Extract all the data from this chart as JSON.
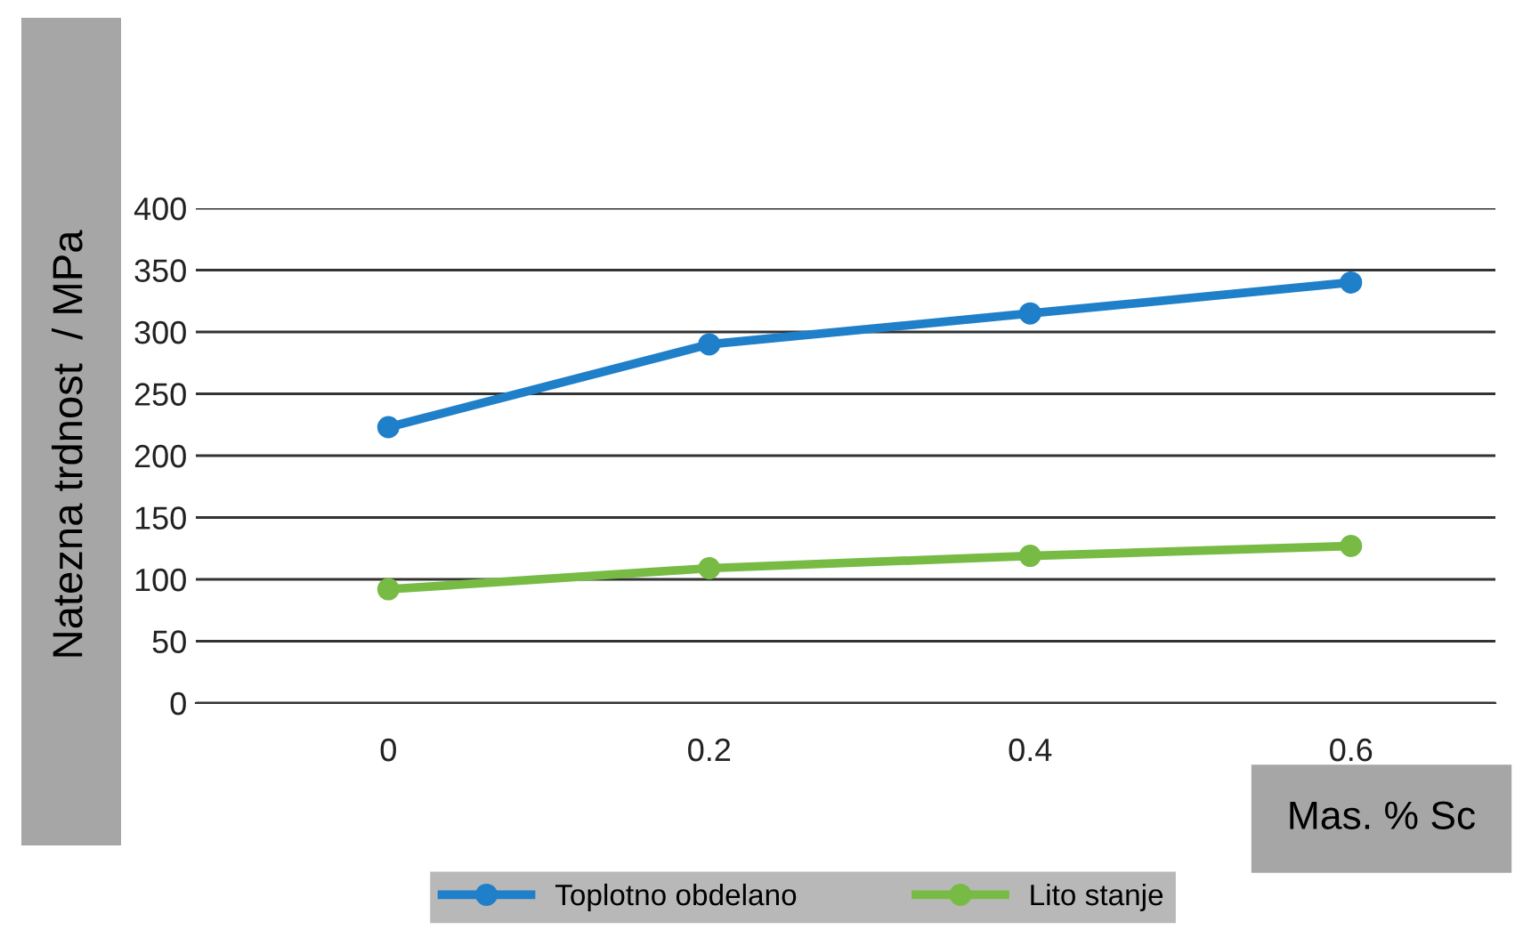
{
  "chart_data": {
    "type": "line",
    "xlabel": "Mas. % Sc",
    "ylabel": "Natezna trdnost  / MPa",
    "x": [
      0,
      0.2,
      0.4,
      0.6
    ],
    "series": [
      {
        "name": "Toplotno obdelano",
        "color": "#1f7fc9",
        "values": [
          223,
          290,
          315,
          340
        ]
      },
      {
        "name": "Lito stanje",
        "color": "#77bb44",
        "values": [
          92,
          109,
          119,
          127
        ]
      }
    ],
    "xlim": [
      -0.12,
      0.69
    ],
    "xticks": [
      0,
      0.2,
      0.4,
      0.6
    ],
    "ylim": [
      0,
      400
    ],
    "yticks": [
      0,
      50,
      100,
      150,
      200,
      250,
      300,
      350,
      400
    ],
    "grid": "y",
    "legend": "bottom",
    "marker": "circle",
    "line_style": "solid"
  }
}
